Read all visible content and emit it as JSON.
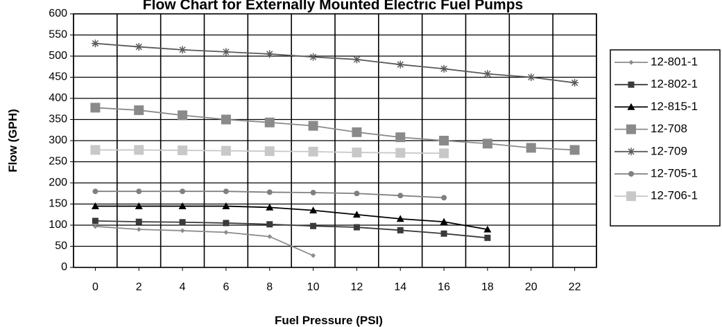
{
  "chart_data": {
    "type": "line",
    "title": "Flow  Chart for Externally Mounted Electric Fuel Pumps",
    "xlabel": "Fuel Pressure (PSI)",
    "ylabel": "Flow (GPH)",
    "x": [
      0,
      2,
      4,
      6,
      8,
      10,
      12,
      14,
      16,
      18,
      20,
      22
    ],
    "xlim": [
      -1,
      23
    ],
    "ylim": [
      0,
      600
    ],
    "yticks": [
      0,
      50,
      100,
      150,
      200,
      250,
      300,
      350,
      400,
      450,
      500,
      550,
      600
    ],
    "grid": true,
    "legend_position": "right",
    "series": [
      {
        "name": "12-801-1",
        "marker": "diamond",
        "color": "#8c8c8c",
        "size": 7,
        "points": [
          [
            0,
            97
          ],
          [
            2,
            90
          ],
          [
            4,
            87
          ],
          [
            6,
            83
          ],
          [
            8,
            73
          ],
          [
            10,
            28
          ]
        ]
      },
      {
        "name": "12-802-1",
        "marker": "square",
        "color": "#3a3a3a",
        "size": 9,
        "points": [
          [
            0,
            110
          ],
          [
            2,
            108
          ],
          [
            4,
            107
          ],
          [
            6,
            105
          ],
          [
            8,
            102
          ],
          [
            10,
            98
          ],
          [
            12,
            95
          ],
          [
            14,
            88
          ],
          [
            16,
            80
          ],
          [
            18,
            70
          ]
        ]
      },
      {
        "name": "12-815-1",
        "marker": "triangle",
        "color": "#000000",
        "size": 11,
        "points": [
          [
            0,
            145
          ],
          [
            2,
            145
          ],
          [
            4,
            145
          ],
          [
            6,
            145
          ],
          [
            8,
            142
          ],
          [
            10,
            135
          ],
          [
            12,
            125
          ],
          [
            14,
            115
          ],
          [
            16,
            108
          ],
          [
            18,
            90
          ]
        ]
      },
      {
        "name": "12-708",
        "marker": "square",
        "color": "#8a8a8a",
        "size": 14,
        "points": [
          [
            0,
            378
          ],
          [
            2,
            372
          ],
          [
            4,
            360
          ],
          [
            6,
            350
          ],
          [
            8,
            343
          ],
          [
            10,
            335
          ],
          [
            12,
            320
          ],
          [
            14,
            308
          ],
          [
            16,
            300
          ],
          [
            18,
            293
          ],
          [
            20,
            283
          ],
          [
            22,
            278
          ]
        ]
      },
      {
        "name": "12-709",
        "marker": "star",
        "color": "#5a5a5a",
        "size": 11,
        "points": [
          [
            0,
            530
          ],
          [
            2,
            522
          ],
          [
            4,
            515
          ],
          [
            6,
            510
          ],
          [
            8,
            505
          ],
          [
            10,
            498
          ],
          [
            12,
            492
          ],
          [
            14,
            480
          ],
          [
            16,
            470
          ],
          [
            18,
            458
          ],
          [
            20,
            450
          ],
          [
            22,
            437
          ]
        ]
      },
      {
        "name": "12-705-1",
        "marker": "circle",
        "color": "#808080",
        "size": 8,
        "points": [
          [
            0,
            180
          ],
          [
            2,
            180
          ],
          [
            4,
            180
          ],
          [
            6,
            180
          ],
          [
            8,
            178
          ],
          [
            10,
            177
          ],
          [
            12,
            175
          ],
          [
            14,
            170
          ],
          [
            16,
            165
          ]
        ]
      },
      {
        "name": "12-706-1",
        "marker": "square",
        "color": "#c8c8c8",
        "size": 14,
        "points": [
          [
            0,
            278
          ],
          [
            2,
            278
          ],
          [
            4,
            277
          ],
          [
            6,
            276
          ],
          [
            8,
            275
          ],
          [
            10,
            274
          ],
          [
            12,
            272
          ],
          [
            14,
            271
          ],
          [
            16,
            270
          ]
        ]
      }
    ]
  }
}
